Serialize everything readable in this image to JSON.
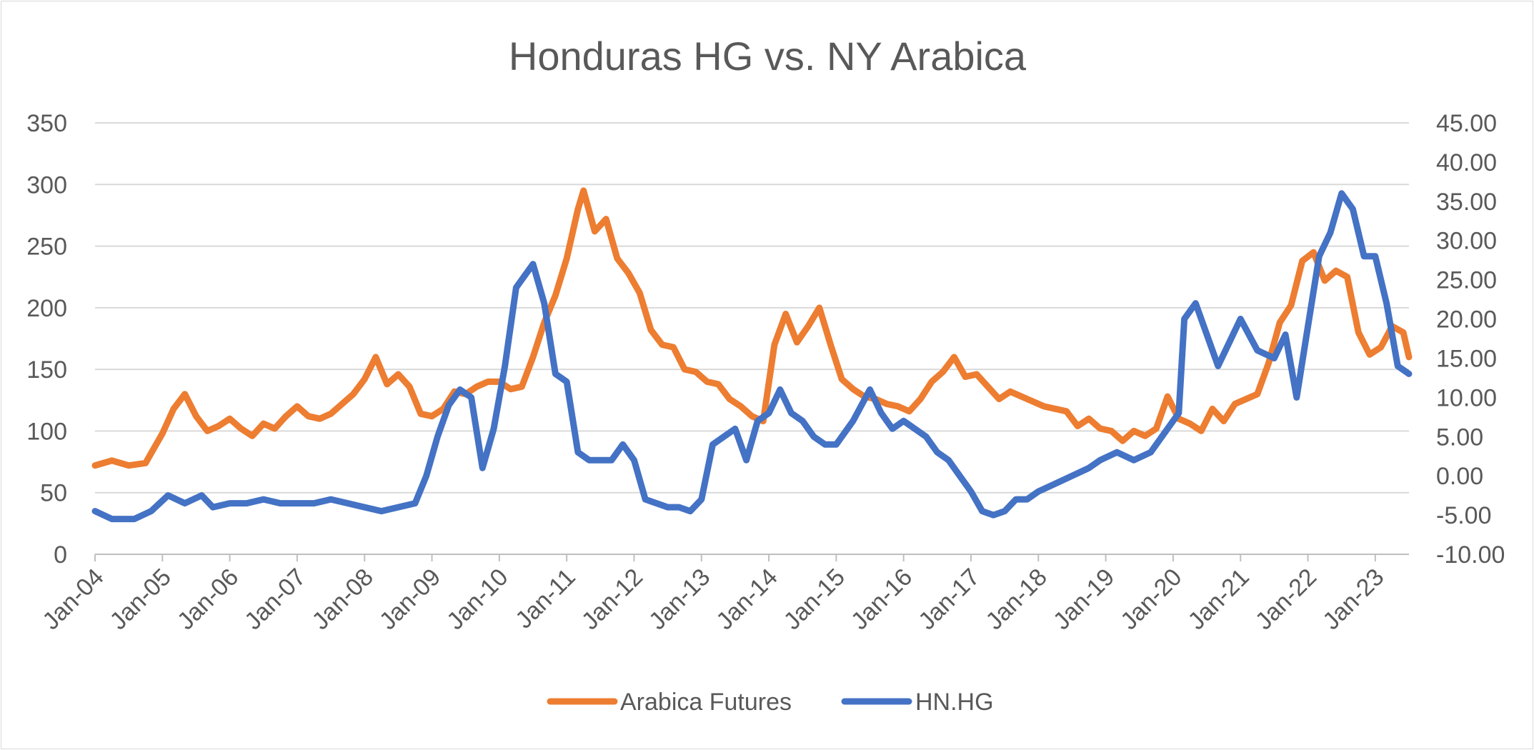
{
  "chart_data": {
    "type": "line",
    "title": "Honduras HG vs. NY Arabica",
    "x_ticks": [
      "Jan-04",
      "Jan-05",
      "Jan-06",
      "Jan-07",
      "Jan-08",
      "Jan-09",
      "Jan-10",
      "Jan-11",
      "Jan-12",
      "Jan-13",
      "Jan-14",
      "Jan-15",
      "Jan-16",
      "Jan-17",
      "Jan-18",
      "Jan-19",
      "Jan-20",
      "Jan-21",
      "Jan-22",
      "Jan-23"
    ],
    "x_range": [
      "2004-01",
      "2023-07"
    ],
    "y_left": {
      "min": 0,
      "max": 350,
      "ticks": [
        "0",
        "50",
        "100",
        "150",
        "200",
        "250",
        "300",
        "350"
      ]
    },
    "y_right": {
      "min": -10,
      "max": 45,
      "ticks": [
        "-10.00",
        "-5.00",
        "0.00",
        "5.00",
        "10.00",
        "15.00",
        "20.00",
        "25.00",
        "30.00",
        "35.00",
        "40.00",
        "45.00"
      ]
    },
    "grid": true,
    "legend_position": "bottom",
    "series": [
      {
        "name": "Arabica Futures",
        "axis": "left",
        "color": "#ED7D31",
        "points": [
          [
            "2004-01",
            72
          ],
          [
            "2004-04",
            76
          ],
          [
            "2004-07",
            72
          ],
          [
            "2004-10",
            74
          ],
          [
            "2005-01",
            98
          ],
          [
            "2005-03",
            118
          ],
          [
            "2005-05",
            130
          ],
          [
            "2005-07",
            112
          ],
          [
            "2005-09",
            100
          ],
          [
            "2005-11",
            104
          ],
          [
            "2006-01",
            110
          ],
          [
            "2006-03",
            102
          ],
          [
            "2006-05",
            96
          ],
          [
            "2006-07",
            106
          ],
          [
            "2006-09",
            102
          ],
          [
            "2006-11",
            112
          ],
          [
            "2007-01",
            120
          ],
          [
            "2007-03",
            112
          ],
          [
            "2007-05",
            110
          ],
          [
            "2007-07",
            114
          ],
          [
            "2007-09",
            122
          ],
          [
            "2007-11",
            130
          ],
          [
            "2008-01",
            142
          ],
          [
            "2008-03",
            160
          ],
          [
            "2008-05",
            138
          ],
          [
            "2008-07",
            146
          ],
          [
            "2008-09",
            136
          ],
          [
            "2008-11",
            114
          ],
          [
            "2009-01",
            112
          ],
          [
            "2009-03",
            118
          ],
          [
            "2009-05",
            132
          ],
          [
            "2009-07",
            130
          ],
          [
            "2009-09",
            136
          ],
          [
            "2009-11",
            140
          ],
          [
            "2010-01",
            140
          ],
          [
            "2010-03",
            134
          ],
          [
            "2010-05",
            136
          ],
          [
            "2010-07",
            160
          ],
          [
            "2010-09",
            188
          ],
          [
            "2010-11",
            210
          ],
          [
            "2011-01",
            240
          ],
          [
            "2011-03",
            280
          ],
          [
            "2011-04",
            295
          ],
          [
            "2011-06",
            262
          ],
          [
            "2011-08",
            272
          ],
          [
            "2011-10",
            240
          ],
          [
            "2011-12",
            228
          ],
          [
            "2012-02",
            212
          ],
          [
            "2012-04",
            182
          ],
          [
            "2012-06",
            170
          ],
          [
            "2012-08",
            168
          ],
          [
            "2012-10",
            150
          ],
          [
            "2012-12",
            148
          ],
          [
            "2013-02",
            140
          ],
          [
            "2013-04",
            138
          ],
          [
            "2013-06",
            126
          ],
          [
            "2013-08",
            120
          ],
          [
            "2013-10",
            112
          ],
          [
            "2013-12",
            108
          ],
          [
            "2014-02",
            170
          ],
          [
            "2014-04",
            195
          ],
          [
            "2014-06",
            172
          ],
          [
            "2014-08",
            185
          ],
          [
            "2014-10",
            200
          ],
          [
            "2014-12",
            170
          ],
          [
            "2015-02",
            142
          ],
          [
            "2015-04",
            134
          ],
          [
            "2015-06",
            128
          ],
          [
            "2015-08",
            126
          ],
          [
            "2015-10",
            122
          ],
          [
            "2015-12",
            120
          ],
          [
            "2016-02",
            116
          ],
          [
            "2016-04",
            126
          ],
          [
            "2016-06",
            140
          ],
          [
            "2016-08",
            148
          ],
          [
            "2016-10",
            160
          ],
          [
            "2016-12",
            144
          ],
          [
            "2017-02",
            146
          ],
          [
            "2017-04",
            136
          ],
          [
            "2017-06",
            126
          ],
          [
            "2017-08",
            132
          ],
          [
            "2017-10",
            128
          ],
          [
            "2017-12",
            124
          ],
          [
            "2018-02",
            120
          ],
          [
            "2018-04",
            118
          ],
          [
            "2018-06",
            116
          ],
          [
            "2018-08",
            104
          ],
          [
            "2018-10",
            110
          ],
          [
            "2018-12",
            102
          ],
          [
            "2019-02",
            100
          ],
          [
            "2019-04",
            92
          ],
          [
            "2019-06",
            100
          ],
          [
            "2019-08",
            96
          ],
          [
            "2019-10",
            102
          ],
          [
            "2019-12",
            128
          ],
          [
            "2020-02",
            110
          ],
          [
            "2020-04",
            106
          ],
          [
            "2020-06",
            100
          ],
          [
            "2020-08",
            118
          ],
          [
            "2020-10",
            108
          ],
          [
            "2020-12",
            122
          ],
          [
            "2021-02",
            126
          ],
          [
            "2021-04",
            130
          ],
          [
            "2021-06",
            155
          ],
          [
            "2021-08",
            188
          ],
          [
            "2021-10",
            202
          ],
          [
            "2021-12",
            238
          ],
          [
            "2022-02",
            245
          ],
          [
            "2022-04",
            222
          ],
          [
            "2022-06",
            230
          ],
          [
            "2022-08",
            225
          ],
          [
            "2022-10",
            180
          ],
          [
            "2022-12",
            162
          ],
          [
            "2023-02",
            168
          ],
          [
            "2023-04",
            185
          ],
          [
            "2023-06",
            180
          ],
          [
            "2023-07",
            160
          ]
        ]
      },
      {
        "name": "HN.HG",
        "axis": "right",
        "color": "#4472C4",
        "points": [
          [
            "2004-01",
            -4.5
          ],
          [
            "2004-04",
            -5.5
          ],
          [
            "2004-08",
            -5.5
          ],
          [
            "2004-11",
            -4.5
          ],
          [
            "2005-02",
            -2.5
          ],
          [
            "2005-05",
            -3.5
          ],
          [
            "2005-08",
            -2.5
          ],
          [
            "2005-10",
            -4
          ],
          [
            "2006-01",
            -3.5
          ],
          [
            "2006-04",
            -3.5
          ],
          [
            "2006-07",
            -3
          ],
          [
            "2006-10",
            -3.5
          ],
          [
            "2007-01",
            -3.5
          ],
          [
            "2007-04",
            -3.5
          ],
          [
            "2007-07",
            -3
          ],
          [
            "2007-10",
            -3.5
          ],
          [
            "2008-01",
            -4
          ],
          [
            "2008-04",
            -4.5
          ],
          [
            "2008-07",
            -4
          ],
          [
            "2008-10",
            -3.5
          ],
          [
            "2008-12",
            0
          ],
          [
            "2009-02",
            5
          ],
          [
            "2009-04",
            9
          ],
          [
            "2009-06",
            11
          ],
          [
            "2009-08",
            10
          ],
          [
            "2009-10",
            1
          ],
          [
            "2009-12",
            6
          ],
          [
            "2010-02",
            14
          ],
          [
            "2010-04",
            24
          ],
          [
            "2010-07",
            27
          ],
          [
            "2010-09",
            22
          ],
          [
            "2010-11",
            13
          ],
          [
            "2011-01",
            12
          ],
          [
            "2011-03",
            3
          ],
          [
            "2011-05",
            2
          ],
          [
            "2011-07",
            2
          ],
          [
            "2011-09",
            2
          ],
          [
            "2011-11",
            4
          ],
          [
            "2012-01",
            2
          ],
          [
            "2012-03",
            -3
          ],
          [
            "2012-05",
            -3.5
          ],
          [
            "2012-07",
            -4
          ],
          [
            "2012-09",
            -4
          ],
          [
            "2012-11",
            -4.5
          ],
          [
            "2013-01",
            -3
          ],
          [
            "2013-03",
            4
          ],
          [
            "2013-05",
            5
          ],
          [
            "2013-07",
            6
          ],
          [
            "2013-09",
            2
          ],
          [
            "2013-11",
            7
          ],
          [
            "2014-01",
            8
          ],
          [
            "2014-03",
            11
          ],
          [
            "2014-05",
            8
          ],
          [
            "2014-07",
            7
          ],
          [
            "2014-09",
            5
          ],
          [
            "2014-11",
            4
          ],
          [
            "2015-01",
            4
          ],
          [
            "2015-04",
            7
          ],
          [
            "2015-07",
            11
          ],
          [
            "2015-09",
            8
          ],
          [
            "2015-11",
            6
          ],
          [
            "2016-01",
            7
          ],
          [
            "2016-03",
            6
          ],
          [
            "2016-05",
            5
          ],
          [
            "2016-07",
            3
          ],
          [
            "2016-09",
            2
          ],
          [
            "2016-11",
            0
          ],
          [
            "2017-01",
            -2
          ],
          [
            "2017-03",
            -4.5
          ],
          [
            "2017-05",
            -5
          ],
          [
            "2017-07",
            -4.5
          ],
          [
            "2017-09",
            -3
          ],
          [
            "2017-11",
            -3
          ],
          [
            "2018-01",
            -2
          ],
          [
            "2018-04",
            -1
          ],
          [
            "2018-07",
            0
          ],
          [
            "2018-10",
            1
          ],
          [
            "2018-12",
            2
          ],
          [
            "2019-03",
            3
          ],
          [
            "2019-06",
            2
          ],
          [
            "2019-09",
            3
          ],
          [
            "2019-12",
            6
          ],
          [
            "2020-02",
            8
          ],
          [
            "2020-03",
            20
          ],
          [
            "2020-05",
            22
          ],
          [
            "2020-07",
            18
          ],
          [
            "2020-09",
            14
          ],
          [
            "2020-11",
            17
          ],
          [
            "2021-01",
            20
          ],
          [
            "2021-04",
            16
          ],
          [
            "2021-07",
            15
          ],
          [
            "2021-09",
            18
          ],
          [
            "2021-11",
            10
          ],
          [
            "2022-01",
            19
          ],
          [
            "2022-03",
            28
          ],
          [
            "2022-05",
            31
          ],
          [
            "2022-07",
            36
          ],
          [
            "2022-09",
            34
          ],
          [
            "2022-11",
            28
          ],
          [
            "2023-01",
            28
          ],
          [
            "2023-03",
            22
          ],
          [
            "2023-05",
            14
          ],
          [
            "2023-07",
            13
          ]
        ]
      }
    ]
  }
}
